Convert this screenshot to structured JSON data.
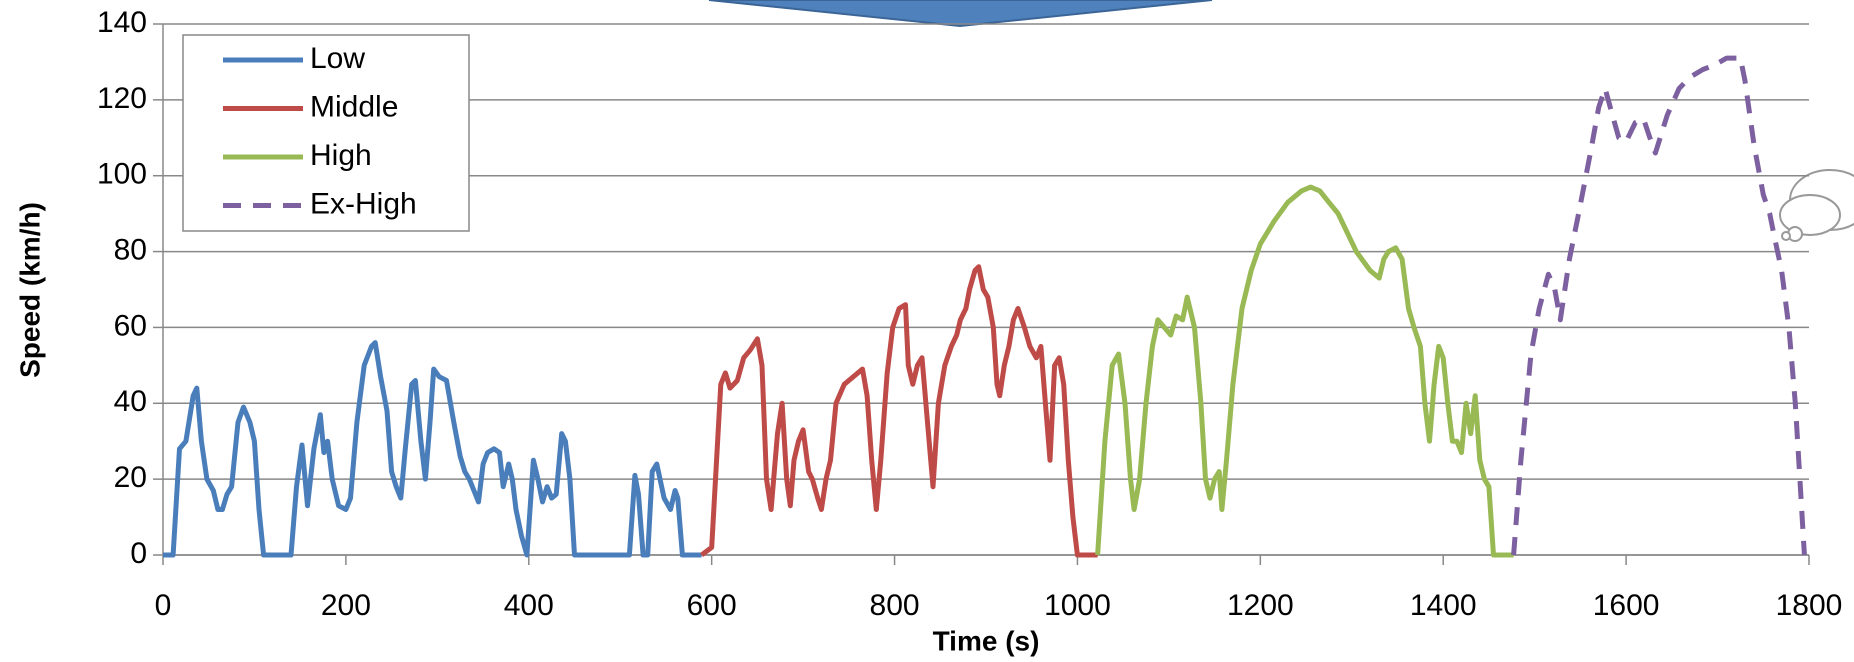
{
  "chart_data": {
    "type": "line",
    "x_label": "Time (s)",
    "y_label": "Speed (km/h)",
    "xlim": [
      0,
      1800
    ],
    "xticks": [
      0,
      200,
      400,
      600,
      800,
      1000,
      1200,
      1400,
      1600,
      1800
    ],
    "ylim": [
      0,
      140
    ],
    "yticks": [
      0,
      20,
      40,
      60,
      80,
      100,
      120,
      140
    ],
    "grid": true,
    "legend": "upper-left",
    "series": [
      {
        "name": "Low",
        "color": "#4a7ebb",
        "style": "solid",
        "x": [
          0,
          11,
          18,
          25,
          33,
          37,
          42,
          48,
          55,
          60,
          65,
          70,
          75,
          82,
          88,
          95,
          100,
          105,
          110,
          140,
          146,
          152,
          158,
          165,
          172,
          176,
          180,
          185,
          192,
          200,
          205,
          212,
          220,
          228,
          232,
          238,
          245,
          250,
          255,
          260,
          265,
          272,
          276,
          282,
          287,
          292,
          296,
          302,
          310,
          318,
          325,
          330,
          335,
          340,
          345,
          350,
          355,
          362,
          368,
          372,
          378,
          382,
          386,
          392,
          398,
          405,
          410,
          415,
          420,
          425,
          430,
          436,
          440,
          445,
          450,
          510,
          516,
          520,
          525,
          530,
          535,
          540,
          548,
          555,
          560,
          563,
          568,
          589
        ],
        "values": [
          0,
          0,
          28,
          30,
          42,
          44,
          30,
          20,
          17,
          12,
          12,
          16,
          18,
          35,
          39,
          35,
          30,
          12,
          0,
          0,
          18,
          29,
          13,
          28,
          37,
          27,
          30,
          20,
          13,
          12,
          15,
          35,
          50,
          55,
          56,
          47,
          38,
          22,
          18,
          15,
          28,
          45,
          46,
          30,
          20,
          35,
          49,
          47,
          46,
          35,
          26,
          22,
          20,
          17,
          14,
          24,
          27,
          28,
          27,
          18,
          24,
          20,
          12,
          5,
          0,
          25,
          20,
          14,
          18,
          15,
          16,
          32,
          30,
          20,
          0,
          0,
          21,
          16,
          0,
          0,
          22,
          24,
          15,
          12,
          17,
          15,
          0,
          0
        ]
      },
      {
        "name": "Middle",
        "color": "#be4b48",
        "style": "solid",
        "x": [
          589,
          600,
          610,
          615,
          620,
          628,
          635,
          642,
          650,
          655,
          660,
          665,
          672,
          677,
          682,
          686,
          690,
          695,
          700,
          706,
          710,
          716,
          720,
          725,
          730,
          736,
          745,
          755,
          765,
          770,
          775,
          780,
          785,
          792,
          798,
          805,
          812,
          815,
          820,
          825,
          830,
          836,
          842,
          848,
          855,
          862,
          868,
          872,
          878,
          882,
          888,
          892,
          897,
          902,
          908,
          912,
          915,
          920,
          925,
          930,
          935,
          942,
          948,
          955,
          960,
          965,
          970,
          975,
          980,
          985,
          990,
          995,
          1000,
          1022
        ],
        "values": [
          0,
          2,
          45,
          48,
          44,
          46,
          52,
          54,
          57,
          50,
          20,
          12,
          32,
          40,
          20,
          13,
          25,
          30,
          33,
          22,
          20,
          15,
          12,
          20,
          25,
          40,
          45,
          47,
          49,
          42,
          25,
          12,
          25,
          48,
          60,
          65,
          66,
          50,
          45,
          50,
          52,
          35,
          18,
          40,
          50,
          55,
          58,
          62,
          65,
          70,
          75,
          76,
          70,
          68,
          60,
          45,
          42,
          50,
          55,
          62,
          65,
          60,
          55,
          52,
          55,
          40,
          25,
          50,
          52,
          45,
          25,
          10,
          0,
          0
        ]
      },
      {
        "name": "High",
        "color": "#98b954",
        "style": "solid",
        "x": [
          1022,
          1030,
          1038,
          1045,
          1052,
          1058,
          1062,
          1068,
          1075,
          1082,
          1088,
          1095,
          1102,
          1108,
          1115,
          1120,
          1128,
          1135,
          1140,
          1145,
          1150,
          1155,
          1158,
          1163,
          1170,
          1180,
          1190,
          1200,
          1215,
          1230,
          1245,
          1255,
          1265,
          1275,
          1285,
          1295,
          1305,
          1320,
          1330,
          1335,
          1340,
          1348,
          1355,
          1362,
          1368,
          1375,
          1380,
          1385,
          1390,
          1395,
          1400,
          1405,
          1410,
          1415,
          1420,
          1425,
          1430,
          1435,
          1440,
          1445,
          1450,
          1455,
          1477
        ],
        "values": [
          0,
          30,
          50,
          53,
          40,
          20,
          12,
          20,
          40,
          55,
          62,
          60,
          58,
          63,
          62,
          68,
          60,
          40,
          20,
          15,
          20,
          22,
          12,
          25,
          45,
          65,
          75,
          82,
          88,
          93,
          96,
          97,
          96,
          93,
          90,
          85,
          80,
          75,
          73,
          78,
          80,
          81,
          78,
          65,
          60,
          55,
          40,
          30,
          45,
          55,
          52,
          40,
          30,
          30,
          27,
          40,
          32,
          42,
          25,
          20,
          18,
          0,
          0
        ]
      },
      {
        "name": "Ex-High",
        "color": "#7d60a0",
        "style": "dashed",
        "x": [
          1477,
          1485,
          1496,
          1505,
          1515,
          1522,
          1528,
          1538,
          1548,
          1561,
          1570,
          1577,
          1585,
          1592,
          1600,
          1610,
          1619,
          1626,
          1632,
          1645,
          1658,
          1670,
          1684,
          1695,
          1710,
          1725,
          1730,
          1740,
          1750,
          1757,
          1762,
          1770,
          1778,
          1785,
          1790,
          1795
        ],
        "values": [
          0,
          25,
          53,
          65,
          74,
          70,
          62,
          78,
          90,
          106,
          118,
          123,
          116,
          110,
          109,
          114,
          115,
          110,
          106,
          116,
          123,
          126,
          128,
          129,
          131,
          131,
          125,
          108,
          95,
          90,
          84,
          75,
          60,
          40,
          20,
          0
        ]
      }
    ]
  }
}
